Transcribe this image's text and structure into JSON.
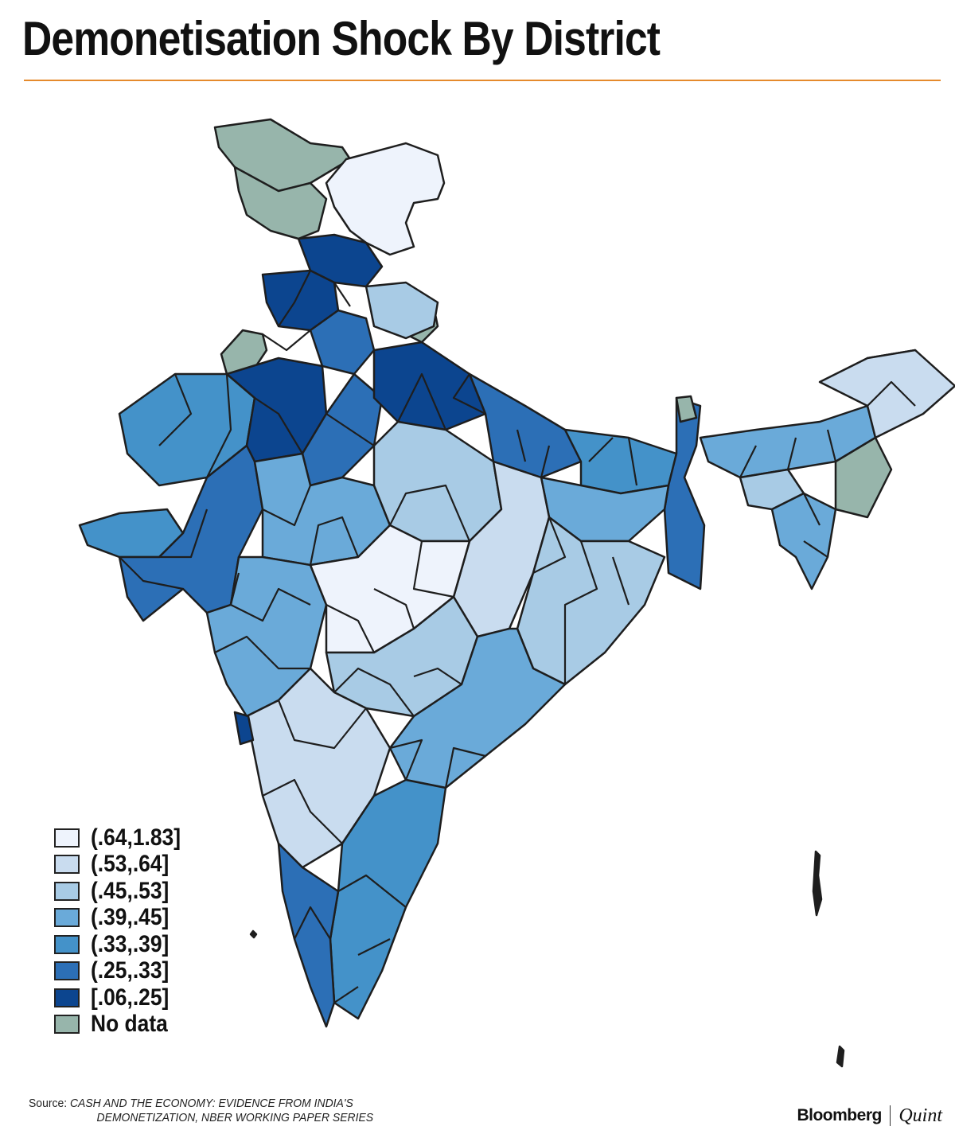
{
  "title": "Demonetisation Shock By District",
  "colors": {
    "accent_rule": "#e58a2c",
    "bin_0": "#eef3fc",
    "bin_1": "#c9dcef",
    "bin_2": "#a8cbe5",
    "bin_3": "#6aaad9",
    "bin_4": "#4492c9",
    "bin_5": "#2c6fb6",
    "bin_6": "#0c458f",
    "no_data": "#97b5ab"
  },
  "legend": {
    "items": [
      {
        "label": "(.64,1.83]",
        "color": "#eef3fc"
      },
      {
        "label": "(.53,.64]",
        "color": "#c9dcef"
      },
      {
        "label": "(.45,.53]",
        "color": "#a8cbe5"
      },
      {
        "label": "(.39,.45]",
        "color": "#6aaad9"
      },
      {
        "label": "(.33,.39]",
        "color": "#4492c9"
      },
      {
        "label": "(.25,.33]",
        "color": "#2c6fb6"
      },
      {
        "label": "[.06,.25]",
        "color": "#0c458f"
      },
      {
        "label": "No data",
        "color": "#97b5ab"
      }
    ]
  },
  "source": {
    "lead": "Source:",
    "line1": "CASH AND THE ECONOMY: EVIDENCE FROM INDIA'S",
    "line2": "DEMONETIZATION, NBER WORKING PAPER SERIES"
  },
  "brand": {
    "name_a": "Bloomberg",
    "name_b": "Quint"
  }
}
